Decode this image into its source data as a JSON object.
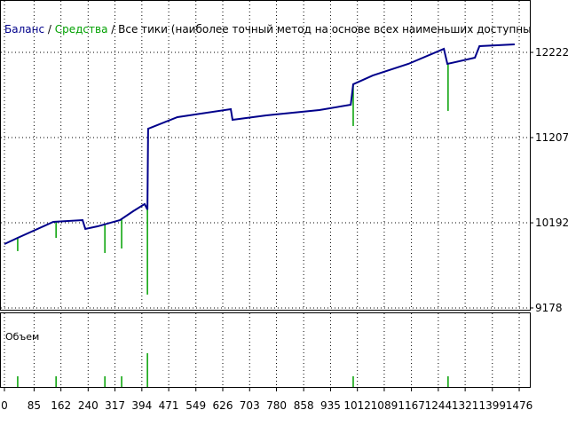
{
  "chart_data": {
    "type": "line",
    "legend": [
      "Баланс",
      "Средства",
      "Все тики (наиболее точный метод на основе всех наименьших доступных таймфреймов для генерации каждо"
    ],
    "volume_label": "Объем",
    "xlim": [
      0,
      1509
    ],
    "ylim": [
      9146,
      12846
    ],
    "xticks": [
      0,
      85,
      162,
      240,
      317,
      394,
      471,
      549,
      626,
      703,
      780,
      858,
      935,
      1012,
      1089,
      1167,
      1244,
      1321,
      1399,
      1476
    ],
    "yticks": [
      9178,
      10192,
      11207,
      12222
    ],
    "grid": true,
    "series": [
      {
        "name": "Баланс",
        "color": "#00008b",
        "x": [
          0,
          38,
          140,
          224,
          232,
          267,
          331,
          369,
          402,
          410,
          412,
          496,
          649,
          654,
          751,
          903,
          993,
          1000,
          1056,
          1158,
          1260,
          1270,
          1349,
          1362,
          1463
        ],
        "values": [
          9939,
          10013,
          10203,
          10224,
          10119,
          10150,
          10224,
          10330,
          10415,
          10350,
          11313,
          11451,
          11546,
          11419,
          11472,
          11535,
          11599,
          11842,
          11947,
          12085,
          12264,
          12085,
          12159,
          12296,
          12317
        ]
      },
      {
        "name": "Средства",
        "color": "#00a000",
        "x": [
          38,
          148,
          288,
          336,
          410,
          1000,
          1272
        ],
        "values": [
          9855,
          10013,
          9833,
          9886,
          9337,
          11345,
          11525
        ]
      }
    ]
  }
}
